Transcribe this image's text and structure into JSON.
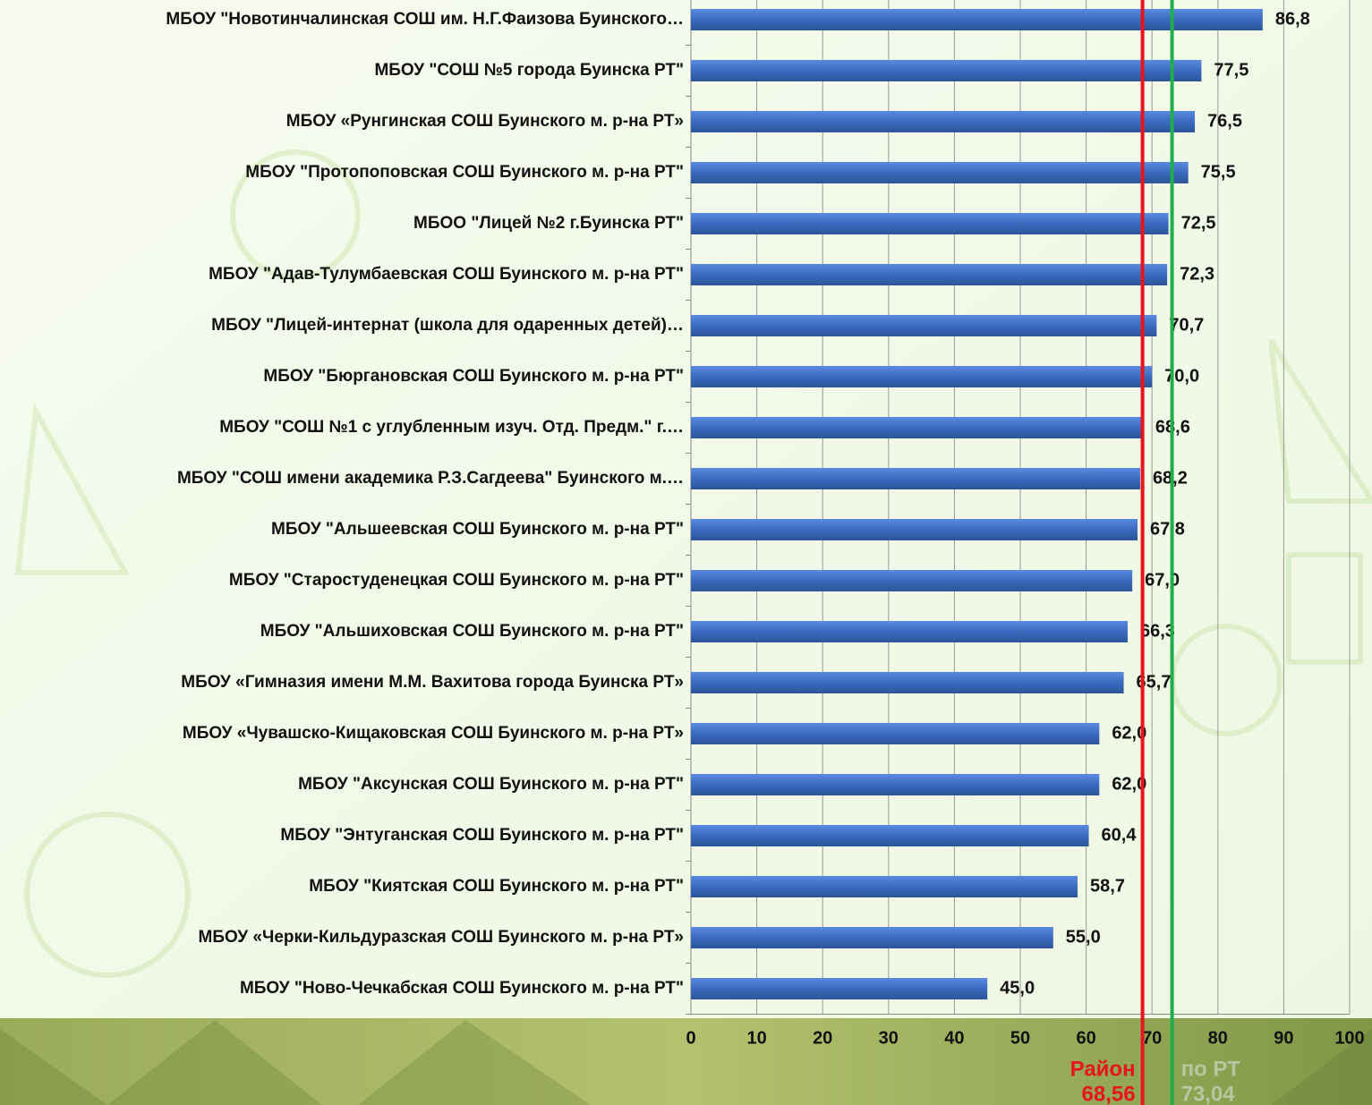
{
  "chart_data": {
    "type": "bar",
    "orientation": "horizontal",
    "categories": [
      "МБОУ \"Новотинчалинская СОШ им. Н.Г.Фаизова Буинского…",
      "МБОУ \"СОШ №5 города Буинска РТ\"",
      "МБОУ «Рунгинская СОШ Буинского м. р-на РТ»",
      "МБОУ \"Протопоповская СОШ Буинского м. р-на РТ\"",
      "МБОО \"Лицей №2 г.Буинска РТ\"",
      "МБОУ \"Адав-Тулумбаевская СОШ Буинского м. р-на РТ\"",
      "МБОУ \"Лицей-интернат (школа для одаренных детей)…",
      "МБОУ \"Бюргановская СОШ Буинского м. р-на РТ\"",
      "МБОУ \"СОШ №1 с углубленным изуч. Отд. Предм.\" г.…",
      "МБОУ \"СОШ имени академика Р.З.Сагдеева\" Буинского м.…",
      "МБОУ \"Альшеевская СОШ Буинского м. р-на РТ\"",
      "МБОУ \"Старостуденецкая СОШ Буинского м. р-на РТ\"",
      "МБОУ \"Альшиховская СОШ Буинского м. р-на РТ\"",
      "МБОУ «Гимназия имени М.М. Вахитова города Буинска РТ»",
      "МБОУ «Чувашско-Кищаковская СОШ Буинского м. р-на РТ»",
      "МБОУ \"Аксунская СОШ Буинского м. р-на РТ\"",
      "МБОУ \"Энтуганская СОШ Буинского м. р-на РТ\"",
      "МБОУ \"Киятская СОШ Буинского м. р-на РТ\"",
      "МБОУ «Черки-Кильдуразская СОШ Буинского м. р-на РТ»",
      "МБОУ \"Ново-Чечкабская СОШ Буинского м. р-на РТ\""
    ],
    "values": [
      86.8,
      77.5,
      76.5,
      75.5,
      72.5,
      72.3,
      70.7,
      70.0,
      68.6,
      68.2,
      67.8,
      67.0,
      66.3,
      65.7,
      62.0,
      62.0,
      60.4,
      58.7,
      55.0,
      45.0
    ],
    "value_labels": [
      "86,8",
      "77,5",
      "76,5",
      "75,5",
      "72,5",
      "72,3",
      "70,7",
      "70,0",
      "68,6",
      "68,2",
      "67,8",
      "67,0",
      "66,3",
      "65,7",
      "62,0",
      "62,0",
      "60,4",
      "58,7",
      "55,0",
      "45,0"
    ],
    "color": "#3b6bbf",
    "xlim": [
      0,
      100
    ],
    "xticks": [
      0,
      10,
      20,
      30,
      40,
      50,
      60,
      70,
      80,
      90,
      100
    ],
    "grid": true,
    "reference_lines": [
      {
        "name": "Район",
        "value": 68.56,
        "value_label": "68,56",
        "color": "#e8141b"
      },
      {
        "name": "по РТ",
        "value": 73.04,
        "value_label": "73,04",
        "color": "#1fae4b"
      }
    ]
  }
}
